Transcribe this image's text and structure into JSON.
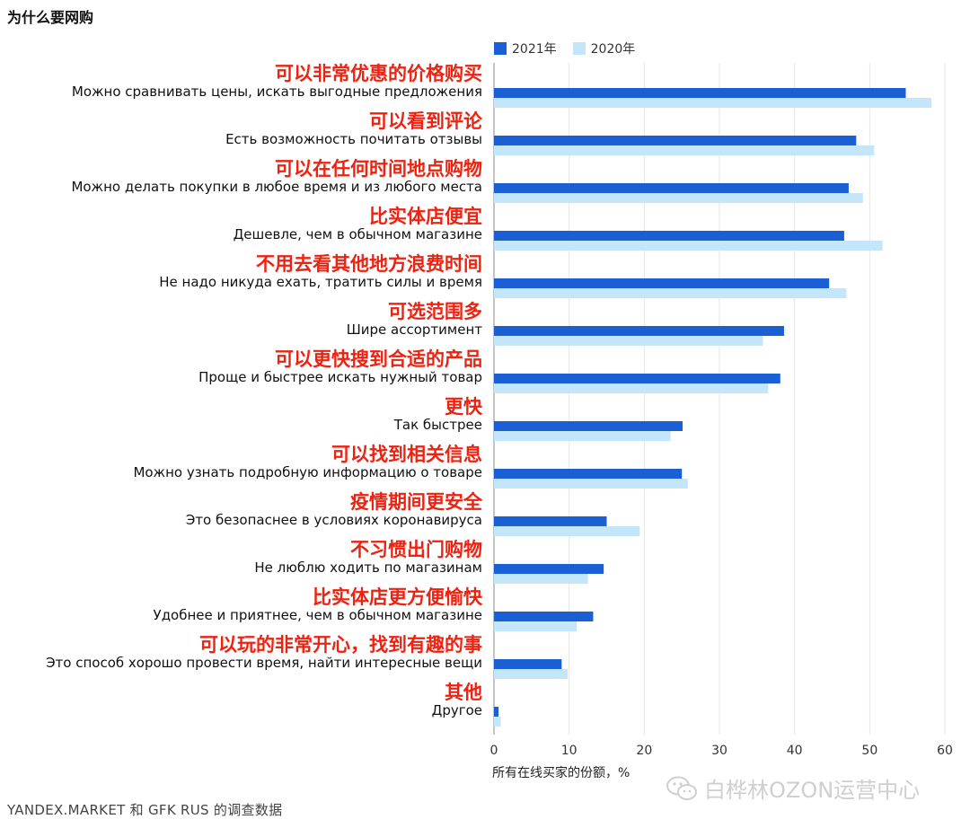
{
  "title": "为什么要网购",
  "footer": "YANDEX.MARKET 和 GFK RUS 的调查数据",
  "watermark": "白桦林OZON运营中心",
  "colors": {
    "series_2021": "#1a5fd3",
    "series_2020": "#c4e6fa",
    "grid": "#e6e6e6",
    "annotation": "#ee2211"
  },
  "chart_data": {
    "type": "bar",
    "orientation": "horizontal",
    "xlabel": "所有在线买家的份额，%",
    "xlim": [
      0,
      60
    ],
    "xticks": [
      0,
      10,
      20,
      30,
      40,
      50,
      60
    ],
    "legend_position": "top",
    "grid": true,
    "series": [
      {
        "name": "2021年",
        "values": [
          54.8,
          48.2,
          47.2,
          46.6,
          44.6,
          38.6,
          38.1,
          25.1,
          25.0,
          15.0,
          14.6,
          13.2,
          9.0,
          0.6
        ]
      },
      {
        "name": "2020年",
        "values": [
          58.2,
          50.6,
          49.1,
          51.7,
          46.9,
          35.8,
          36.5,
          23.5,
          25.8,
          19.4,
          12.5,
          11.0,
          9.8,
          0.9
        ]
      }
    ],
    "categories": [
      {
        "cn": "可以非常优惠的价格购买",
        "ru": "Можно сравнивать цены, искать выгодные предложения"
      },
      {
        "cn": "可以看到评论",
        "ru": "Есть возможность почитать отзывы"
      },
      {
        "cn": "可以在任何时间地点购物",
        "ru": "Можно делать покупки в любое время и из любого места"
      },
      {
        "cn": "比实体店便宜",
        "ru": "Дешевле, чем в обычном магазине"
      },
      {
        "cn": "不用去看其他地方浪费时间",
        "ru": "Не надо никуда ехать, тратить силы и время"
      },
      {
        "cn": "可选范围多",
        "ru": "Шире ассортимент"
      },
      {
        "cn": "可以更快搜到合适的产品",
        "ru": "Проще и быстрее искать нужный товар"
      },
      {
        "cn": "更快",
        "ru": "Так быстрее"
      },
      {
        "cn": "可以找到相关信息",
        "ru": "Можно узнать подробную информацию о товаре"
      },
      {
        "cn": "疫情期间更安全",
        "ru": "Это безопаснее в условиях коронавируса"
      },
      {
        "cn": "不习惯出门购物",
        "ru": "Не люблю ходить по магазинам"
      },
      {
        "cn": "比实体店更方便愉快",
        "ru": "Удобнее и приятнее, чем в обычном магазине"
      },
      {
        "cn": "可以玩的非常开心，找到有趣的事",
        "ru": "Это способ хорошо провести время, найти интересные вещи"
      },
      {
        "cn": "其他",
        "ru": "Другое"
      }
    ]
  }
}
